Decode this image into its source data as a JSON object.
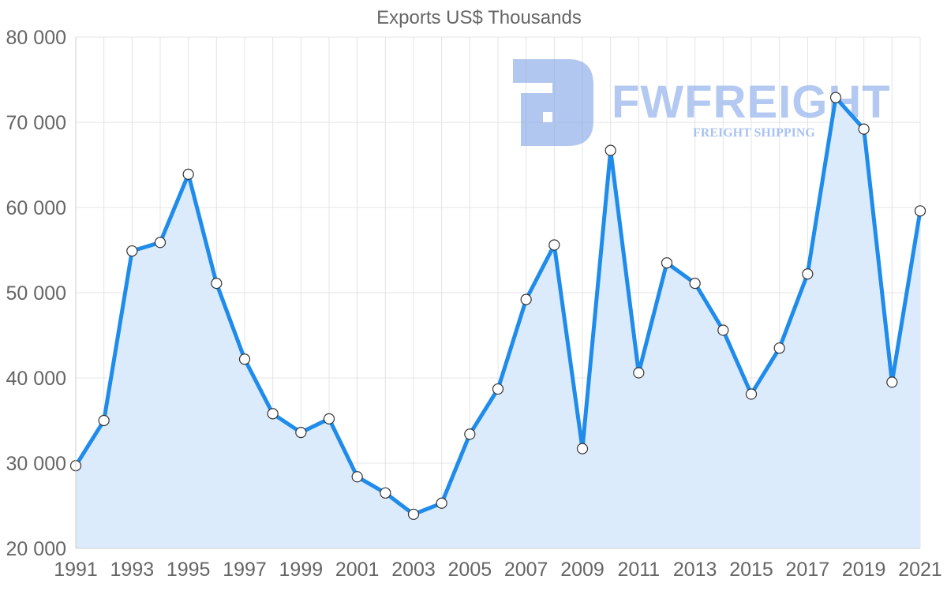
{
  "chart_data": {
    "type": "area",
    "title": "Exports US$ Thousands",
    "xlabel": "",
    "ylabel": "",
    "x": [
      1991,
      1992,
      1993,
      1994,
      1995,
      1996,
      1997,
      1998,
      1999,
      2000,
      2001,
      2002,
      2003,
      2004,
      2005,
      2006,
      2007,
      2008,
      2009,
      2010,
      2011,
      2012,
      2013,
      2014,
      2015,
      2016,
      2017,
      2018,
      2019,
      2020,
      2021
    ],
    "series": [
      {
        "name": "Exports US$ Thousands",
        "values": [
          29700,
          35000,
          54900,
          55900,
          63900,
          51100,
          42200,
          35800,
          33600,
          35200,
          28400,
          26500,
          24000,
          25300,
          33400,
          38700,
          49200,
          55600,
          31700,
          66700,
          40600,
          53500,
          51100,
          45600,
          38100,
          43500,
          52200,
          72900,
          69200,
          39500,
          59600
        ]
      }
    ],
    "ylim": [
      20000,
      80000
    ],
    "yticks": [
      20000,
      30000,
      40000,
      50000,
      60000,
      70000,
      80000
    ],
    "ytick_labels": [
      "20 000",
      "30 000",
      "40 000",
      "50 000",
      "60 000",
      "70 000",
      "80 000"
    ],
    "xtick_labels": [
      "1991",
      "1993",
      "1995",
      "1997",
      "1999",
      "2001",
      "2003",
      "2005",
      "2007",
      "2009",
      "2011",
      "2013",
      "2015",
      "2017",
      "2019",
      "2021"
    ],
    "grid": true,
    "legend": "none",
    "colors": {
      "line": "#1f8ceb",
      "fill": "#dcebfb",
      "point_fill": "#ffffff",
      "point_stroke": "#333333"
    }
  },
  "watermark": {
    "brand": "FWFREIGHT",
    "tagline": "FREIGHT SHIPPING",
    "color": "#9ab8ee"
  }
}
